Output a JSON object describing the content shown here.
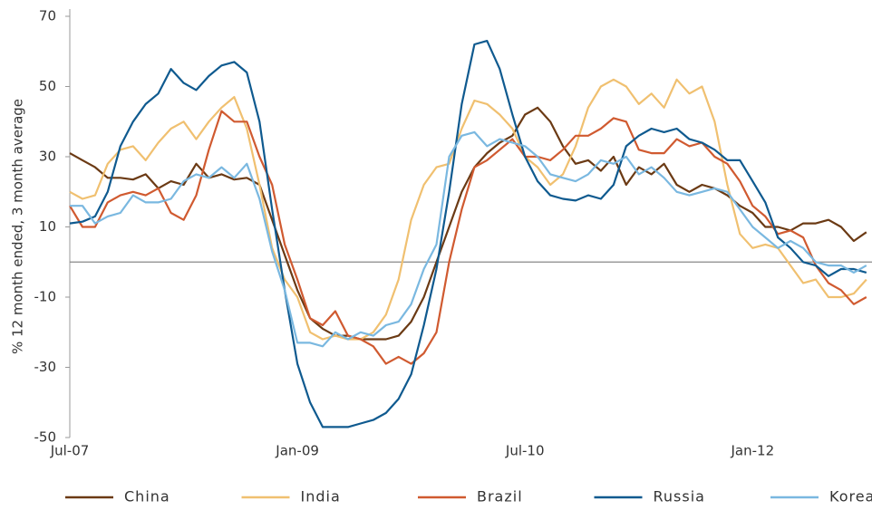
{
  "chart_data": {
    "type": "line",
    "ylabel": "% 12 month ended, 3 month average",
    "categories": [
      "Jul-07",
      null,
      null,
      null,
      null,
      null,
      null,
      null,
      null,
      null,
      null,
      null,
      null,
      null,
      null,
      null,
      null,
      null,
      "Jan-09",
      null,
      null,
      null,
      null,
      null,
      null,
      null,
      null,
      null,
      null,
      null,
      null,
      null,
      null,
      null,
      null,
      null,
      "Jul-10",
      null,
      null,
      null,
      null,
      null,
      null,
      null,
      null,
      null,
      null,
      null,
      null,
      null,
      null,
      null,
      null,
      null,
      "Jan-12",
      null,
      null,
      null,
      null,
      null,
      null,
      null,
      null,
      null
    ],
    "ylim": [
      -50,
      70
    ],
    "yticks": [
      -50,
      -30,
      -10,
      10,
      30,
      50,
      70
    ],
    "legend": "bottom",
    "series": [
      {
        "name": "China",
        "color": "#6b3a14",
        "values": [
          31,
          29,
          27,
          24,
          24,
          23.5,
          25,
          21,
          23,
          22,
          28,
          24,
          25,
          23.5,
          24,
          22,
          12,
          2,
          -8,
          -16,
          -19,
          -21,
          -21,
          -22,
          -22,
          -22,
          -21,
          -17,
          -10,
          0,
          10,
          20,
          27,
          31,
          34,
          36,
          42,
          44,
          40,
          33,
          28,
          29,
          26,
          30,
          22,
          27,
          25,
          28,
          22,
          20,
          22,
          21,
          19,
          16,
          14,
          10,
          10,
          9,
          11,
          11,
          12,
          10,
          6,
          8.5
        ]
      },
      {
        "name": "India",
        "color": "#f0c070",
        "values": [
          20,
          18,
          19,
          28,
          32,
          33,
          29,
          34,
          38,
          40,
          35,
          40,
          44,
          47,
          38,
          22,
          4,
          -5,
          -10,
          -20,
          -22,
          -21,
          -22,
          -22,
          -20,
          -15,
          -5,
          12,
          22,
          27,
          28,
          38,
          46,
          45,
          42,
          38,
          30,
          27,
          22,
          25,
          33,
          44,
          50,
          52,
          50,
          45,
          48,
          44,
          52,
          48,
          50,
          40,
          22,
          8,
          4,
          5,
          4,
          -1,
          -6,
          -5,
          -10,
          -10,
          -9,
          -5
        ]
      },
      {
        "name": "Brazil",
        "color": "#d05a30",
        "values": [
          16,
          10,
          10,
          17,
          19,
          20,
          19,
          21,
          14,
          12,
          19,
          32,
          43,
          40,
          40,
          30,
          22,
          5,
          -5,
          -16,
          -18,
          -14,
          -21,
          -22,
          -24,
          -29,
          -27,
          -29,
          -26,
          -20,
          0,
          15,
          27,
          29,
          32,
          35,
          30,
          30,
          29,
          32,
          36,
          36,
          38,
          41,
          40,
          32,
          31,
          31,
          35,
          33,
          34,
          30,
          28,
          23,
          16,
          13,
          8,
          9,
          7,
          -1,
          -6,
          -8,
          -12,
          -10
        ]
      },
      {
        "name": "Russia",
        "color": "#0f5a8f",
        "values": [
          11,
          11.5,
          13,
          20,
          33,
          40,
          45,
          48,
          55,
          51,
          49,
          53,
          56,
          57,
          54,
          40,
          15,
          -8,
          -29,
          -40,
          -47,
          -47,
          -47,
          -46,
          -45,
          -43,
          -39,
          -32,
          -18,
          -2,
          20,
          45,
          62,
          63,
          55,
          42,
          30,
          23,
          19,
          18,
          17.5,
          19,
          18,
          22,
          33,
          36,
          38,
          37,
          38,
          35,
          34,
          32,
          29,
          29,
          23,
          17,
          7,
          4,
          0,
          -1,
          -4,
          -2,
          -2,
          -3
        ]
      },
      {
        "name": "Korea",
        "color": "#7ab8e0",
        "values": [
          16,
          16,
          11,
          13,
          14,
          19,
          17,
          17,
          18,
          23,
          25,
          24,
          27,
          24,
          28,
          18,
          3,
          -8,
          -23,
          -23,
          -24,
          -20,
          -22,
          -20,
          -21,
          -18,
          -17,
          -12,
          -2,
          5,
          30,
          36,
          37,
          33,
          35,
          34,
          33,
          30,
          25,
          24,
          23,
          25,
          29,
          28,
          30,
          25,
          27,
          24,
          20,
          19,
          20,
          21,
          20,
          15,
          10,
          7,
          4,
          6,
          4,
          0,
          -1,
          -1,
          -3,
          -1
        ]
      }
    ]
  }
}
